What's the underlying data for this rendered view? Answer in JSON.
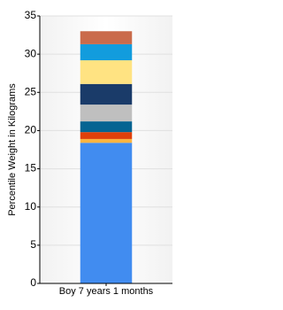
{
  "chart_data": {
    "type": "stacked_bar",
    "y_label": "Percentile Weight in Kilograms",
    "categories": [
      "Boy 7 years 1 months"
    ],
    "series": [
      {
        "color": "#418cf0",
        "values": [
          18.4
        ]
      },
      {
        "color": "#fcb441",
        "values": [
          0.5
        ]
      },
      {
        "color": "#e0400a",
        "values": [
          0.9
        ]
      },
      {
        "color": "#056492",
        "values": [
          1.4
        ]
      },
      {
        "color": "#bfbfbf",
        "values": [
          2.2
        ]
      },
      {
        "color": "#1a3b69",
        "values": [
          2.7
        ]
      },
      {
        "color": "#ffe382",
        "values": [
          3.1
        ]
      },
      {
        "color": "#129cdd",
        "values": [
          2.1
        ]
      },
      {
        "color": "#ca6b4b",
        "values": [
          1.7
        ]
      }
    ],
    "ylim": [
      0,
      35
    ],
    "yticks": [
      0,
      5,
      10,
      15,
      20,
      25,
      30,
      35
    ],
    "grid": true
  }
}
